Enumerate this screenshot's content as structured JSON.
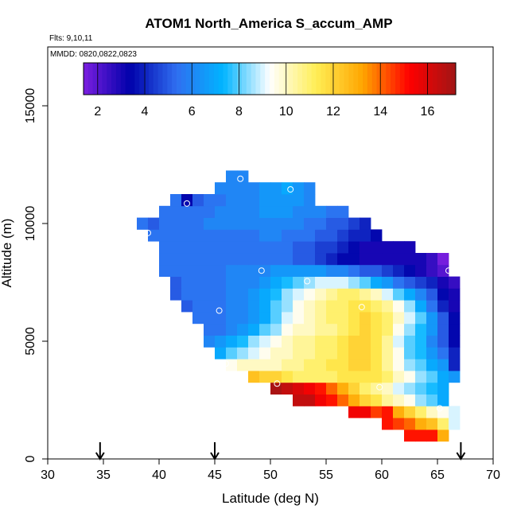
{
  "chart_data": {
    "type": "heatmap",
    "title": "ATOM1 North_America S_accum_AMP",
    "flights_note": "Flts: 9,10,11",
    "dates_note": "MMDD: 0820,0822,0823",
    "xlabel": "Latitude (deg N)",
    "ylabel": "Altitude (m)",
    "xlim": [
      30,
      70
    ],
    "ylim": [
      0,
      17500
    ],
    "xticks": [
      30,
      35,
      40,
      45,
      50,
      55,
      60,
      65,
      70
    ],
    "yticks": [
      0,
      5000,
      10000,
      15000
    ],
    "colorbar": {
      "range": [
        1.4,
        17.2
      ],
      "ticks": [
        2,
        4,
        6,
        8,
        10,
        12,
        14,
        16
      ],
      "colors": [
        "#7b1fe0",
        "#0000aa",
        "#2f6ff0",
        "#00b4ff",
        "#ffffff",
        "#ffee55",
        "#ffa500",
        "#ff0000",
        "#a01515"
      ]
    },
    "cell": {
      "dlat": 1.0,
      "dalt": 500
    },
    "rows": [
      {
        "alt": 1000,
        "lat0": 62.5,
        "values": [
          15,
          15,
          15,
          13
        ]
      },
      {
        "alt": 1500,
        "lat0": 60.5,
        "values": [
          15,
          14.5,
          14,
          13,
          12.5,
          11,
          9
        ]
      },
      {
        "alt": 2000,
        "lat0": 57.5,
        "values": [
          15.5,
          15.5,
          14.5,
          15,
          13,
          12,
          11,
          10,
          9.5,
          9
        ]
      },
      {
        "alt": 2500,
        "lat0": 52.5,
        "values": [
          16.5,
          16.5,
          15.5,
          15,
          14,
          13,
          12,
          11.5,
          10.5,
          10,
          9.5,
          8.5,
          8,
          7
        ]
      },
      {
        "alt": 3000,
        "lat0": 50.5,
        "values": [
          17,
          16.5,
          16,
          15.5,
          15,
          14,
          13,
          12,
          11,
          10.5,
          10,
          9,
          8.5,
          8,
          7.5,
          7
        ]
      },
      {
        "alt": 3500,
        "lat0": 48.5,
        "values": [
          12.5,
          12,
          12,
          11.5,
          11,
          11,
          11,
          11,
          11.5,
          11.5,
          11.5,
          11.5,
          11,
          10,
          9.5,
          8.5,
          8,
          7,
          6.5
        ]
      },
      {
        "alt": 4000,
        "lat0": 46.5,
        "values": [
          9.5,
          10,
          10,
          10,
          10,
          10.5,
          10.5,
          11,
          11,
          11.5,
          11.5,
          12,
          12,
          11.5,
          10.5,
          9.5,
          8.5,
          8,
          7,
          6.5,
          4
        ]
      },
      {
        "alt": 4500,
        "lat0": 45.5,
        "values": [
          7,
          8,
          8.5,
          9,
          9.5,
          10,
          10,
          10.5,
          10.5,
          11,
          11,
          11.5,
          12,
          12,
          11.5,
          10.5,
          9.5,
          8,
          7.5,
          6.5,
          5.5,
          4
        ]
      },
      {
        "alt": 5000,
        "lat0": 44.5,
        "values": [
          6,
          6.5,
          7,
          7.5,
          8.5,
          9,
          9.5,
          10,
          10.5,
          10.5,
          11,
          11,
          11.5,
          12,
          12,
          11.5,
          10.5,
          9,
          8,
          7.5,
          6,
          5,
          3.5
        ]
      },
      {
        "alt": 5500,
        "lat0": 44.5,
        "values": [
          5.5,
          5.5,
          6,
          6.5,
          7,
          8,
          8.5,
          9.5,
          10,
          10,
          10.5,
          10.5,
          11,
          11.5,
          12,
          11.5,
          11,
          9.5,
          8.5,
          7.5,
          6.5,
          5,
          3.5
        ]
      },
      {
        "alt": 6000,
        "lat0": 43.5,
        "values": [
          5.5,
          5.5,
          5.5,
          6,
          6,
          6.5,
          7,
          8,
          9,
          9.5,
          10,
          10.5,
          11,
          11,
          11.5,
          12,
          11.5,
          11,
          10,
          9,
          8,
          6.5,
          5,
          3.5
        ]
      },
      {
        "alt": 6500,
        "lat0": 42.5,
        "values": [
          5,
          5.5,
          5.5,
          5.5,
          6,
          6,
          6.5,
          7,
          8,
          8.5,
          9.5,
          10,
          10.5,
          11,
          11,
          11.5,
          11.5,
          11,
          10.5,
          9.5,
          8.5,
          7,
          5.5,
          4,
          3
        ]
      },
      {
        "alt": 7000,
        "lat0": 41.5,
        "values": [
          5,
          5.5,
          5.5,
          5.5,
          5.5,
          6,
          6,
          6.5,
          7,
          7.5,
          8.5,
          9,
          9.5,
          10,
          10.5,
          11,
          11,
          10.5,
          10,
          9,
          8,
          7,
          6,
          5,
          3.5,
          3
        ]
      },
      {
        "alt": 7500,
        "lat0": 41.5,
        "values": [
          5,
          5.5,
          5.5,
          5.5,
          5.5,
          6,
          6,
          6,
          6.5,
          7,
          7.5,
          8,
          8.5,
          9,
          9,
          9,
          8.5,
          8,
          7,
          6.5,
          5.5,
          5,
          4.5,
          4,
          3,
          2.5
        ]
      },
      {
        "alt": 8000,
        "lat0": 40.5,
        "values": [
          5.5,
          5.5,
          5.5,
          5.5,
          5.5,
          5.5,
          6,
          6,
          6,
          6,
          6.5,
          6.5,
          6.5,
          6.5,
          6.5,
          6,
          6,
          5.5,
          5,
          5,
          4.5,
          4,
          3.5,
          3,
          2.5,
          2
        ]
      },
      {
        "alt": 8500,
        "lat0": 40.5,
        "values": [
          5.5,
          5.5,
          5.5,
          5.5,
          5.5,
          5.5,
          5.5,
          5.5,
          5.5,
          5.5,
          5.5,
          5.5,
          5,
          5,
          4.5,
          4,
          3.5,
          3.5,
          3,
          3,
          3,
          3,
          3,
          3,
          2.5,
          1.5
        ]
      },
      {
        "alt": 9000,
        "lat0": 40.5,
        "values": [
          5.5,
          5.5,
          5.5,
          5.5,
          5.5,
          5.5,
          5.5,
          5.5,
          5.5,
          5.5,
          5.5,
          5.5,
          5,
          5,
          4.5,
          4.5,
          4,
          3.5,
          3,
          3,
          3,
          3,
          3
        ]
      },
      {
        "alt": 9500,
        "lat0": 39.5,
        "values": [
          5.5,
          5.5,
          5.5,
          5.5,
          5.5,
          5.5,
          5.5,
          5.5,
          5.5,
          5.5,
          6,
          6,
          5.5,
          5.5,
          5.5,
          5,
          5,
          4.5,
          4,
          4,
          3.5
        ]
      },
      {
        "alt": 10000,
        "lat0": 38.5,
        "values": [
          5.5,
          5,
          5.5,
          5.5,
          5.5,
          5.5,
          6,
          6,
          6,
          6,
          6,
          6,
          6,
          6,
          6,
          5.5,
          5.5,
          5,
          5,
          4.5,
          4
        ]
      },
      {
        "alt": 10500,
        "lat0": 40.5,
        "values": [
          5.5,
          5.5,
          5.5,
          5.5,
          5.5,
          6,
          6,
          6,
          6,
          6.5,
          6.5,
          6.5,
          6,
          6,
          6,
          5.5,
          5.5
        ]
      },
      {
        "alt": 11000,
        "lat0": 41.5,
        "values": [
          5.5,
          3.5,
          5,
          5.5,
          5.5,
          6,
          6,
          6,
          6.5,
          6.5,
          6.5,
          6.5,
          6
        ]
      },
      {
        "alt": 11500,
        "lat0": 45.5,
        "values": [
          6,
          6,
          6,
          6,
          6.5,
          6.5,
          7,
          6.5,
          6
        ]
      },
      {
        "alt": 12000,
        "lat0": 46.5,
        "values": [
          6,
          6
        ]
      }
    ],
    "markers": [
      {
        "lat": 47.3,
        "alt": 11900
      },
      {
        "lat": 51.8,
        "alt": 11450
      },
      {
        "lat": 42.5,
        "alt": 10850
      },
      {
        "lat": 39.0,
        "alt": 9600
      },
      {
        "lat": 49.2,
        "alt": 8000
      },
      {
        "lat": 66.0,
        "alt": 8000
      },
      {
        "lat": 53.3,
        "alt": 7550
      },
      {
        "lat": 58.2,
        "alt": 6450
      },
      {
        "lat": 45.4,
        "alt": 6300
      },
      {
        "lat": 46.0,
        "alt": 4050
      },
      {
        "lat": 50.6,
        "alt": 3200
      },
      {
        "lat": 59.8,
        "alt": 3050
      },
      {
        "lat": 65.2,
        "alt": 2150
      }
    ],
    "arrows_lat": [
      34.7,
      45.0,
      67.1
    ]
  }
}
